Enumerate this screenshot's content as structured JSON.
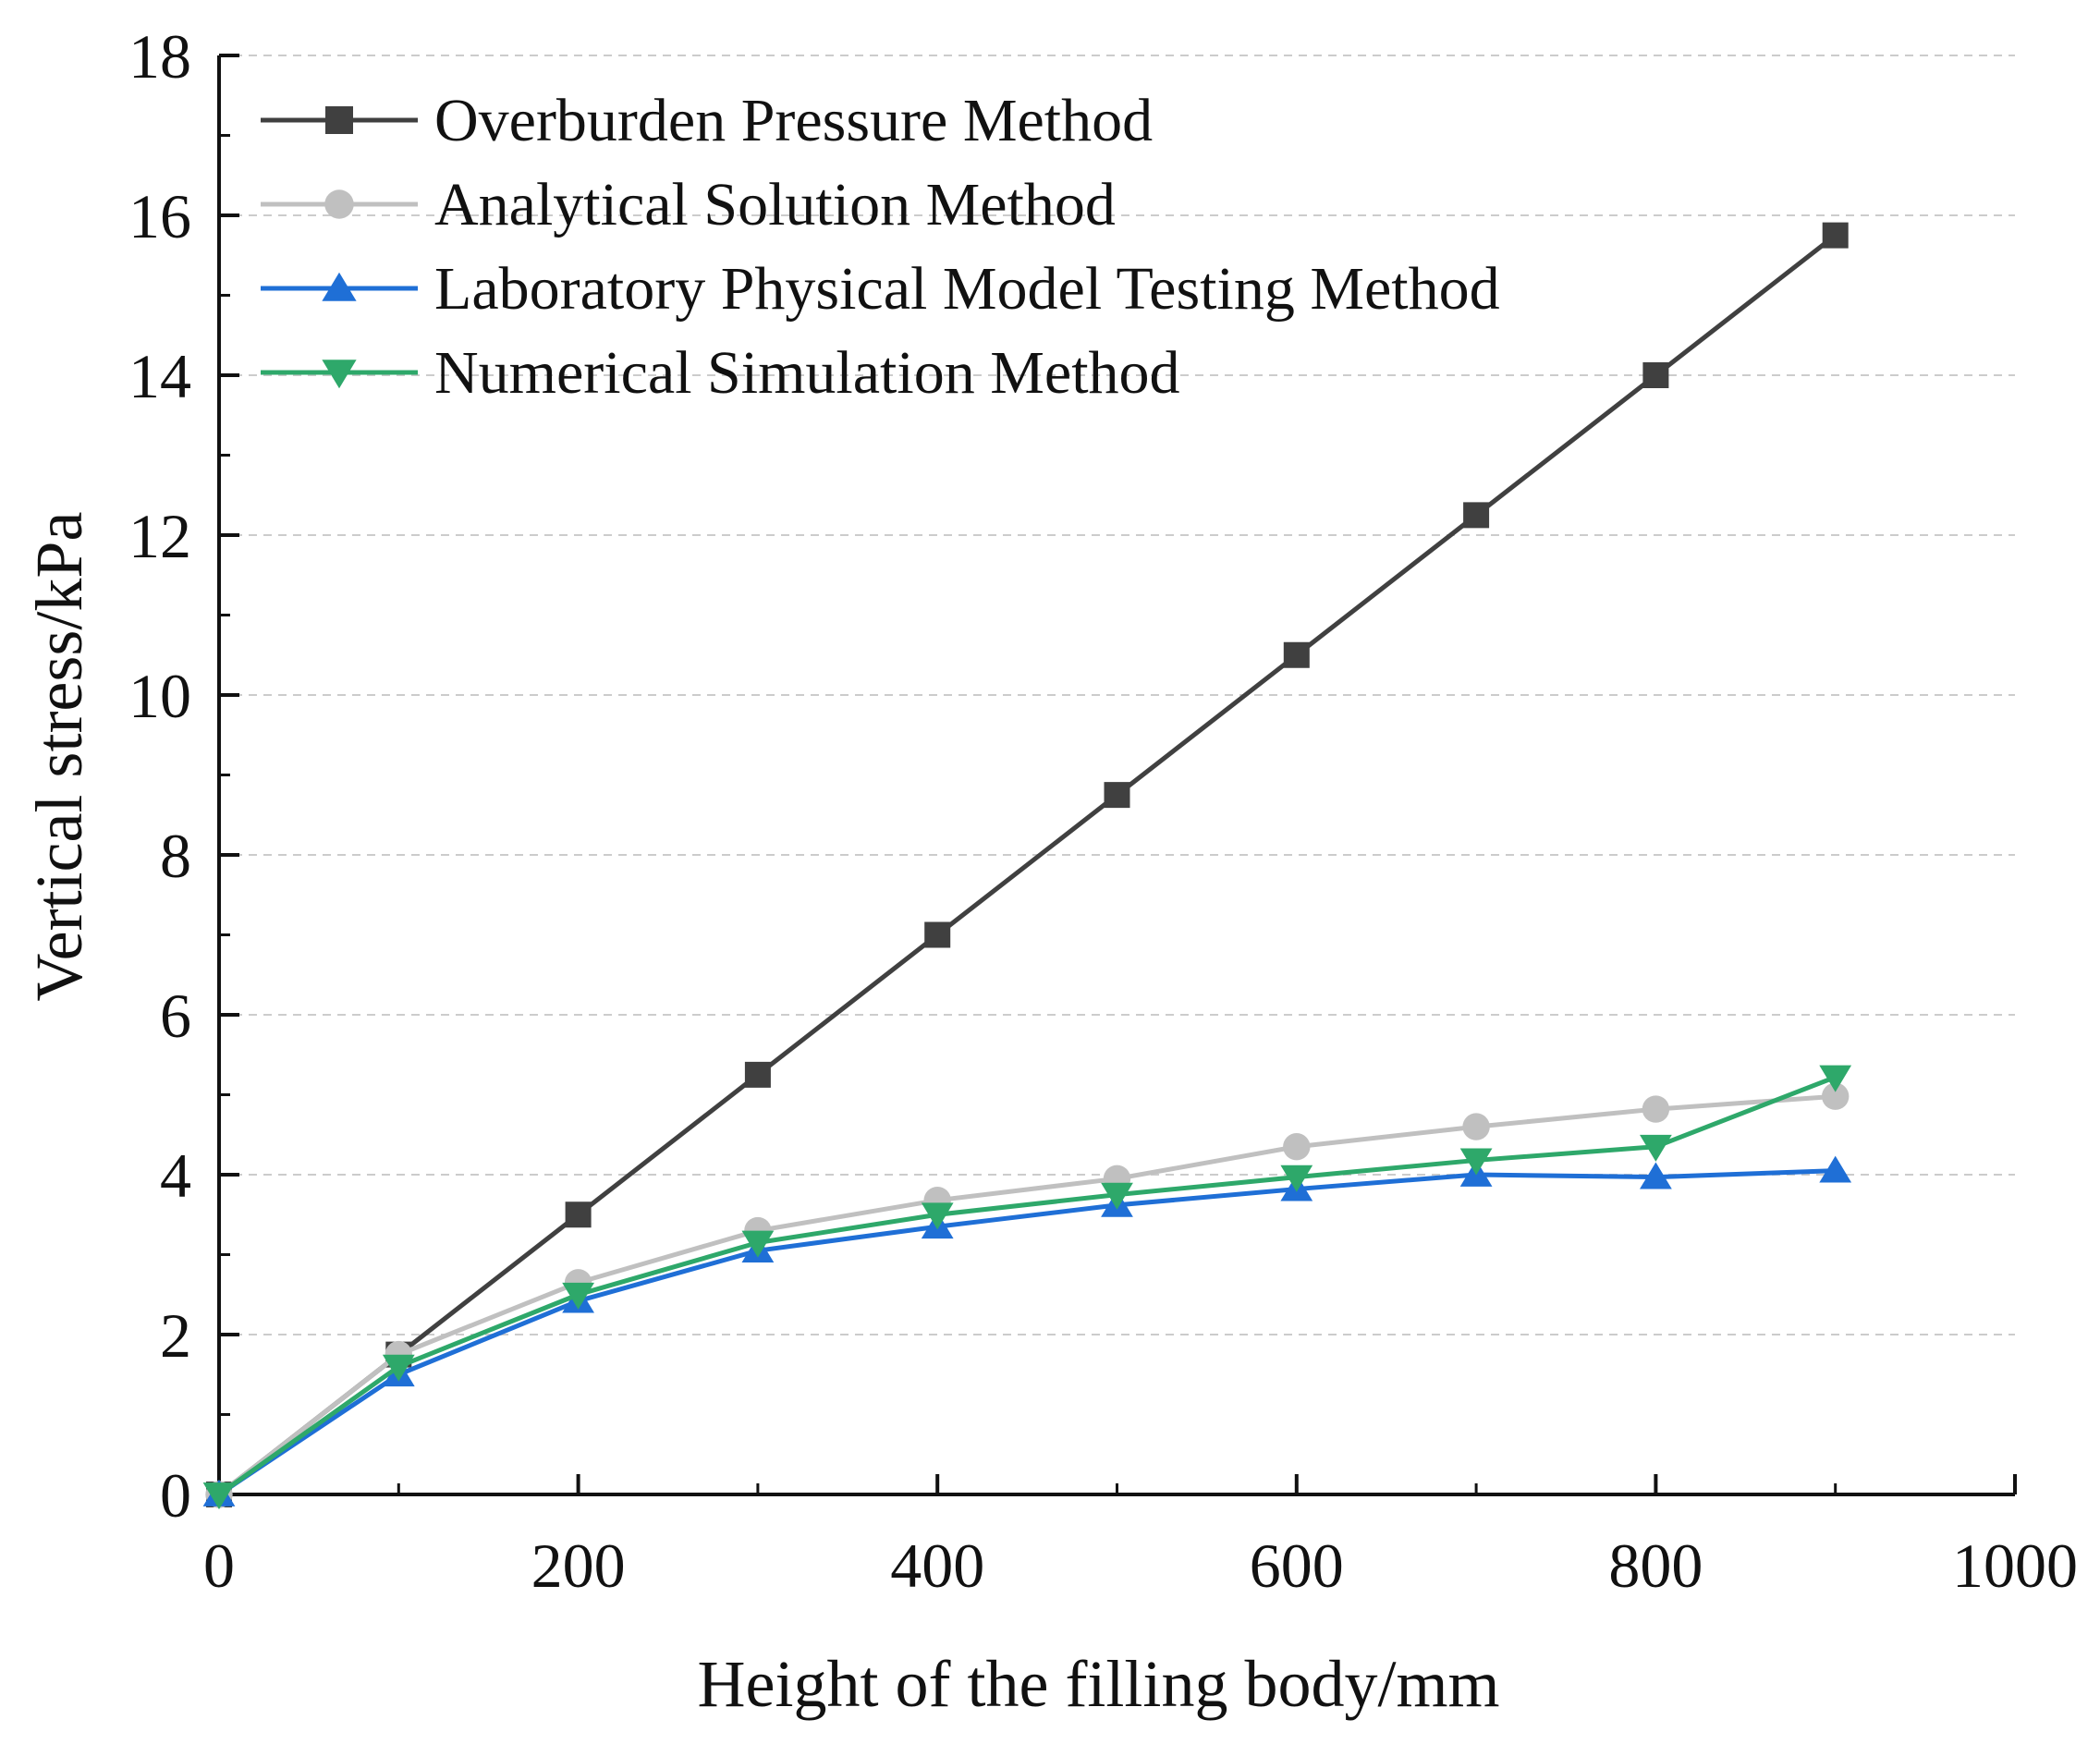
{
  "chart_data": {
    "type": "line",
    "xlabel": "Height of the filling body/mm",
    "ylabel": "Vertical stress/kPa",
    "xlim": [
      0,
      1000
    ],
    "ylim": [
      0,
      18
    ],
    "x_ticks": [
      "0",
      "200",
      "400",
      "600",
      "800",
      "1000"
    ],
    "y_ticks": [
      "0",
      "2",
      "4",
      "6",
      "8",
      "10",
      "12",
      "14",
      "16",
      "18"
    ],
    "x": [
      0,
      100,
      200,
      300,
      400,
      500,
      600,
      700,
      800,
      900
    ],
    "grid": "horizontal dashed",
    "legend_position": "top-left",
    "series": [
      {
        "name": "Overburden Pressure Method",
        "marker": "square",
        "color": "#404040",
        "values": [
          0,
          1.75,
          3.5,
          5.25,
          7.0,
          8.75,
          10.5,
          12.25,
          14.0,
          15.75
        ]
      },
      {
        "name": "Analytical Solution Method",
        "marker": "circle",
        "color": "#c0c0c0",
        "values": [
          0,
          1.75,
          2.65,
          3.3,
          3.68,
          3.95,
          4.35,
          4.6,
          4.82,
          4.98
        ]
      },
      {
        "name": "Laboratory Physical Model Testing Method",
        "marker": "triangle-up",
        "color": "#1f6fd6",
        "values": [
          0,
          1.5,
          2.42,
          3.05,
          3.35,
          3.62,
          3.82,
          4.0,
          3.97,
          4.05
        ]
      },
      {
        "name": "Numerical Simulation Method",
        "marker": "triangle-down",
        "color": "#2ea86a",
        "values": [
          0,
          1.6,
          2.5,
          3.15,
          3.5,
          3.75,
          3.97,
          4.18,
          4.35,
          5.22
        ]
      }
    ]
  }
}
